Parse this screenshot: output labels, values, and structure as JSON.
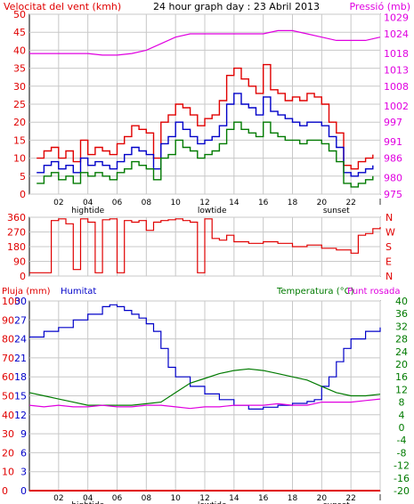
{
  "chart_data": [
    {
      "type": "line",
      "title": "24 hour graph day : 23 Abril 2013",
      "ylabel_left": "Velocitat del vent (kmh)",
      "ylabel_right": "Pressió (mb)",
      "x_ticks": [
        "02",
        "04",
        "06",
        "08",
        "10",
        "12",
        "14",
        "16",
        "18",
        "20",
        "22",
        "l"
      ],
      "x_events": [
        {
          "label": "hightide",
          "hour": 4
        },
        {
          "label": "lowtide",
          "hour": 12.5
        },
        {
          "label": "sunset",
          "hour": 21
        }
      ],
      "ylim_left": [
        0,
        50
      ],
      "yticks_left": [
        0,
        5,
        10,
        15,
        20,
        25,
        30,
        35,
        40,
        45,
        50
      ],
      "ylim_right": [
        975,
        1030
      ],
      "yticks_right": [
        975,
        980,
        986,
        991,
        997,
        1002,
        1008,
        1013,
        1018,
        1024,
        1029
      ],
      "grid": true,
      "colors": {
        "gust": "#e00000",
        "wind_avg": "#0000c8",
        "wind_min": "#007a00",
        "pressure": "#e000e0",
        "text_left": "#e00000",
        "text_right": "#e000e0"
      },
      "series": [
        {
          "key": "gust",
          "color": "#e00000",
          "x": [
            0.5,
            1,
            1.5,
            2,
            2.5,
            3,
            3.5,
            4,
            4.5,
            5,
            5.5,
            6,
            6.5,
            7,
            7.5,
            8,
            8.5,
            9,
            9.5,
            10,
            10.5,
            11,
            11.5,
            12,
            12.5,
            13,
            13.5,
            14,
            14.5,
            15,
            15.5,
            16,
            16.5,
            17,
            17.5,
            18,
            18.5,
            19,
            19.5,
            20,
            20.5,
            21,
            21.5,
            22,
            22.5,
            23,
            23.5
          ],
          "values": [
            10,
            12,
            13,
            10,
            12,
            9,
            15,
            11,
            13,
            12,
            11,
            14,
            16,
            19,
            18,
            17,
            10,
            20,
            22,
            25,
            24,
            22,
            19,
            21,
            22,
            26,
            33,
            35,
            32,
            30,
            28,
            36,
            29,
            28,
            26,
            27,
            26,
            28,
            27,
            25,
            20,
            17,
            8,
            7,
            9,
            10,
            11
          ]
        },
        {
          "key": "wind_avg",
          "color": "#0000c8",
          "x": [
            0.5,
            1,
            1.5,
            2,
            2.5,
            3,
            3.5,
            4,
            4.5,
            5,
            5.5,
            6,
            6.5,
            7,
            7.5,
            8,
            8.5,
            9,
            9.5,
            10,
            10.5,
            11,
            11.5,
            12,
            12.5,
            13,
            13.5,
            14,
            14.5,
            15,
            15.5,
            16,
            16.5,
            17,
            17.5,
            18,
            18.5,
            19,
            19.5,
            20,
            20.5,
            21,
            21.5,
            22,
            22.5,
            23,
            23.5
          ],
          "values": [
            6,
            8,
            9,
            7,
            8,
            6,
            10,
            8,
            9,
            8,
            7,
            9,
            11,
            13,
            12,
            11,
            7,
            14,
            16,
            20,
            18,
            16,
            14,
            15,
            16,
            19,
            25,
            28,
            25,
            24,
            22,
            27,
            23,
            22,
            21,
            20,
            19,
            20,
            20,
            19,
            16,
            13,
            6,
            5,
            6,
            7,
            8
          ]
        },
        {
          "key": "wind_min",
          "color": "#007a00",
          "x": [
            0.5,
            1,
            1.5,
            2,
            2.5,
            3,
            3.5,
            4,
            4.5,
            5,
            5.5,
            6,
            6.5,
            7,
            7.5,
            8,
            8.5,
            9,
            9.5,
            10,
            10.5,
            11,
            11.5,
            12,
            12.5,
            13,
            13.5,
            14,
            14.5,
            15,
            15.5,
            16,
            16.5,
            17,
            17.5,
            18,
            18.5,
            19,
            19.5,
            20,
            20.5,
            21,
            21.5,
            22,
            22.5,
            23,
            23.5
          ],
          "values": [
            3,
            5,
            6,
            4,
            5,
            3,
            6,
            5,
            6,
            5,
            4,
            6,
            7,
            9,
            8,
            7,
            4,
            10,
            11,
            15,
            13,
            12,
            10,
            11,
            12,
            14,
            18,
            20,
            18,
            17,
            16,
            20,
            17,
            16,
            15,
            15,
            14,
            15,
            15,
            14,
            12,
            9,
            3,
            2,
            3,
            4,
            5
          ]
        },
        {
          "key": "pressure",
          "color": "#e000e0",
          "x": [
            0,
            1,
            2,
            3,
            4,
            5,
            6,
            7,
            8,
            9,
            10,
            11,
            12,
            13,
            14,
            15,
            16,
            17,
            18,
            19,
            20,
            21,
            22,
            23,
            24
          ],
          "values": [
            1018,
            1018,
            1018,
            1018,
            1018,
            1017.5,
            1017.5,
            1018,
            1019,
            1021,
            1023,
            1024,
            1024,
            1024,
            1024,
            1024,
            1024,
            1025,
            1025,
            1024,
            1023,
            1022,
            1022,
            1022,
            1023
          ]
        }
      ]
    },
    {
      "type": "line",
      "series_name": "wind direction",
      "yticks": [
        "360",
        "270",
        "180",
        "90",
        "0"
      ],
      "right_labels": [
        "N",
        "W",
        "S",
        "E",
        "N"
      ],
      "ylim": [
        0,
        360
      ],
      "grid": true,
      "series": [
        {
          "key": "direction",
          "color": "#e00000",
          "x": [
            0,
            0.5,
            1,
            1.5,
            2,
            2.5,
            3,
            3.5,
            4,
            4.5,
            5,
            5.5,
            6,
            6.5,
            7,
            7.5,
            8,
            8.5,
            9,
            9.5,
            10,
            10.5,
            11,
            11.5,
            12,
            12.5,
            13,
            13.5,
            14,
            15,
            16,
            17,
            18,
            19,
            20,
            21,
            22,
            22.5,
            23,
            23.5,
            24
          ],
          "values": [
            20,
            20,
            20,
            340,
            350,
            320,
            40,
            350,
            330,
            20,
            345,
            350,
            20,
            340,
            330,
            340,
            280,
            330,
            340,
            345,
            350,
            340,
            330,
            20,
            350,
            230,
            220,
            250,
            210,
            200,
            210,
            200,
            180,
            190,
            170,
            160,
            140,
            250,
            260,
            290,
            300
          ]
        }
      ]
    },
    {
      "type": "line",
      "ylabel_left_1": "Pluja (mm)",
      "ylabel_left_2": "Humitat",
      "ylabel_right": "Temperatura (°C)",
      "ylabel_right_2": "Punt rosada",
      "yticks_humidity": [
        0,
        10,
        20,
        30,
        40,
        50,
        60,
        70,
        80,
        90,
        100
      ],
      "yticks_rain": [
        0,
        3,
        6,
        9,
        12,
        15,
        18,
        21,
        24,
        27,
        30
      ],
      "yticks_temp": [
        -20,
        -16,
        -12,
        -8,
        -4,
        0,
        4,
        8,
        12,
        16,
        20,
        24,
        28,
        32,
        36,
        40
      ],
      "ylim_humidity": [
        0,
        100
      ],
      "ylim_temp": [
        -20,
        40
      ],
      "x_ticks": [
        "02",
        "04",
        "06",
        "08",
        "10",
        "12",
        "14",
        "16",
        "18",
        "20",
        "22",
        "l"
      ],
      "x_events": [
        {
          "label": "hightide",
          "hour": 4
        },
        {
          "label": "lowtide",
          "hour": 12.5
        },
        {
          "label": "sunset",
          "hour": 21
        }
      ],
      "grid": true,
      "colors": {
        "rain": "#e00000",
        "humidity": "#0000c8",
        "temperature": "#007a00",
        "dewpoint": "#e000e0",
        "text_rain": "#e00000",
        "text_hum": "#0000c8",
        "text_temp": "#007a00",
        "text_dew": "#e000e0"
      },
      "series": [
        {
          "key": "humidity",
          "color": "#0000c8",
          "x": [
            0,
            1,
            2,
            3,
            4,
            5,
            5.5,
            6,
            6.5,
            7,
            7.5,
            8,
            8.5,
            9,
            9.5,
            10,
            11,
            12,
            13,
            14,
            15,
            16,
            17,
            18,
            19,
            19.5,
            20,
            20.5,
            21,
            21.5,
            22,
            23,
            24
          ],
          "values": [
            81,
            84,
            86,
            90,
            93,
            97,
            98,
            97,
            95,
            93,
            91,
            88,
            84,
            75,
            65,
            60,
            55,
            51,
            48,
            45,
            43,
            44,
            45,
            46,
            47,
            48,
            55,
            60,
            68,
            75,
            80,
            84,
            86
          ]
        },
        {
          "key": "temperature",
          "color": "#007a00",
          "x": [
            0,
            1,
            2,
            3,
            4,
            5,
            6,
            7,
            8,
            9,
            10,
            11,
            12,
            13,
            14,
            15,
            16,
            17,
            18,
            19,
            20,
            21,
            22,
            23,
            24
          ],
          "values": [
            11,
            10,
            9,
            8,
            7,
            7,
            7,
            7,
            7.5,
            8,
            11,
            14,
            15.5,
            17,
            18,
            18.5,
            18,
            17,
            16,
            15,
            13,
            11,
            10,
            10,
            10.5
          ]
        },
        {
          "key": "dewpoint",
          "color": "#e000e0",
          "x": [
            0,
            1,
            2,
            3,
            4,
            5,
            6,
            7,
            8,
            9,
            10,
            11,
            12,
            13,
            14,
            15,
            16,
            17,
            18,
            19,
            20,
            21,
            22,
            23,
            24
          ],
          "values": [
            7,
            6.5,
            7,
            6.5,
            6.5,
            7,
            6.5,
            6.5,
            7,
            7,
            6.5,
            6,
            6.5,
            6.5,
            7,
            7,
            7,
            7.5,
            7,
            7,
            8,
            8,
            8,
            8.5,
            9
          ]
        },
        {
          "key": "rain",
          "color": "#e00000",
          "x": [
            0,
            24
          ],
          "values": [
            0,
            0
          ]
        }
      ]
    }
  ]
}
